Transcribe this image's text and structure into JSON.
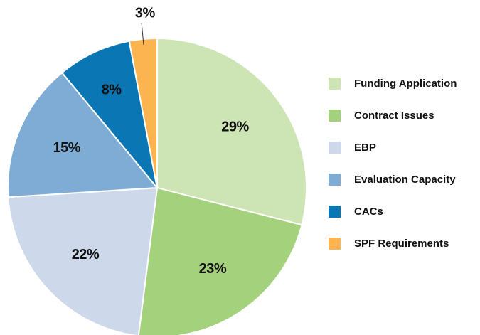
{
  "chart_data": {
    "type": "pie",
    "categories": [
      "Funding Application",
      "Contract Issues",
      "EBP",
      "Evaluation Capacity",
      "CACs",
      "SPF Requirements"
    ],
    "values": [
      29,
      23,
      22,
      15,
      8,
      3
    ],
    "value_labels": [
      "29%",
      "23%",
      "22%",
      "15%",
      "8%",
      "3%"
    ],
    "colors": [
      "#cde5b5",
      "#a3d17c",
      "#cdd9ea",
      "#7eacd4",
      "#0a76b3",
      "#fbb44f"
    ],
    "legend": "right"
  }
}
